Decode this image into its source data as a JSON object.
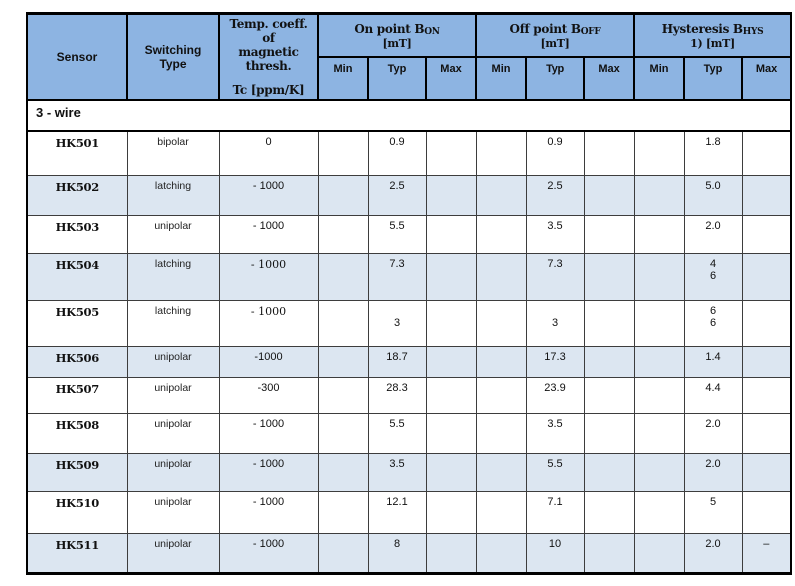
{
  "colors": {
    "header_bg": "#8db4e2",
    "row_alt_bg": "#dce6f1",
    "grid_line": "#3d3d3d",
    "frame_line": "#000000"
  },
  "header": {
    "sensor": "Sensor",
    "switching_type": "Switching\nType",
    "temp_coeff_title": "Temp. coeff. of\nmagnetic thresh.",
    "temp_coeff_unit": "Tc [ppm/K]",
    "on_point": {
      "label": "On point B",
      "sub": "ON",
      "unit": "[mT]"
    },
    "off_point": {
      "label": "Off point B",
      "sub": "OFF",
      "unit": "[mT]"
    },
    "hysteresis": {
      "label": "Hysteresis B",
      "sub": "HYS",
      "unit": "1) [mT]"
    },
    "min": "Min",
    "typ": "Typ",
    "max": "Max"
  },
  "section_label": "3 - wire",
  "rows": [
    {
      "sensor": "HK501",
      "switching_type": "bipolar",
      "tc": "0",
      "tc_serif": false,
      "on_min": "",
      "on_typ": "0.9",
      "on_max": "",
      "off_min": "",
      "off_typ": "0.9",
      "off_max": "",
      "hys_min": "",
      "hys_typ": "1.8",
      "hys_max": "",
      "shaded": false
    },
    {
      "sensor": "HK502",
      "switching_type": "latching",
      "tc": "- 1000",
      "tc_serif": false,
      "on_min": "",
      "on_typ": "2.5",
      "on_max": "",
      "off_min": "",
      "off_typ": "2.5",
      "off_max": "",
      "hys_min": "",
      "hys_typ": "5.0",
      "hys_max": "",
      "shaded": true
    },
    {
      "sensor": "HK503",
      "switching_type": "unipolar",
      "tc": "- 1000",
      "tc_serif": false,
      "on_min": "",
      "on_typ": "5.5",
      "on_max": "",
      "off_min": "",
      "off_typ": "3.5",
      "off_max": "",
      "hys_min": "",
      "hys_typ": "2.0",
      "hys_max": "",
      "shaded": false
    },
    {
      "sensor": "HK504",
      "switching_type": "latching",
      "tc": "- 1000",
      "tc_serif": true,
      "on_min": "",
      "on_typ": "7.3",
      "on_max": "",
      "off_min": "",
      "off_typ": "7.3",
      "off_max": "",
      "hys_min": "",
      "hys_typ": "4\n6",
      "hys_max": "",
      "shaded": true
    },
    {
      "sensor": "HK505",
      "switching_type": "latching",
      "tc": "- 1000",
      "tc_serif": true,
      "on_min": "",
      "on_typ": "\n3",
      "on_max": "",
      "off_min": "",
      "off_typ": "\n3",
      "off_max": "",
      "hys_min": "",
      "hys_typ": "6\n6",
      "hys_max": "",
      "shaded": false
    },
    {
      "sensor": "HK506",
      "switching_type": "unipolar",
      "tc": "-1000",
      "tc_serif": false,
      "on_min": "",
      "on_typ": "18.7",
      "on_max": "",
      "off_min": "",
      "off_typ": "17.3",
      "off_max": "",
      "hys_min": "",
      "hys_typ": "1.4",
      "hys_max": "",
      "shaded": true
    },
    {
      "sensor": "HK507",
      "switching_type": "unipolar",
      "tc": "-300",
      "tc_serif": false,
      "on_min": "",
      "on_typ": "28.3",
      "on_max": "",
      "off_min": "",
      "off_typ": "23.9",
      "off_max": "",
      "hys_min": "",
      "hys_typ": "4.4",
      "hys_max": "",
      "shaded": false
    },
    {
      "sensor": "HK508",
      "switching_type": "unipolar",
      "tc": "- 1000",
      "tc_serif": false,
      "on_min": "",
      "on_typ": "5.5",
      "on_max": "",
      "off_min": "",
      "off_typ": "3.5",
      "off_max": "",
      "hys_min": "",
      "hys_typ": "2.0",
      "hys_max": "",
      "shaded": false
    },
    {
      "sensor": "HK509",
      "switching_type": "unipolar",
      "tc": "- 1000",
      "tc_serif": false,
      "on_min": "",
      "on_typ": "3.5",
      "on_max": "",
      "off_min": "",
      "off_typ": "5.5",
      "off_max": "",
      "hys_min": "",
      "hys_typ": "2.0",
      "hys_max": "",
      "shaded": true
    },
    {
      "sensor": "HK510",
      "switching_type": "unipolar",
      "tc": "- 1000",
      "tc_serif": false,
      "on_min": "",
      "on_typ": "12.1",
      "on_max": "",
      "off_min": "",
      "off_typ": "7.1",
      "off_max": "",
      "hys_min": "",
      "hys_typ": "5",
      "hys_max": "",
      "shaded": false
    },
    {
      "sensor": "HK511",
      "switching_type": "unipolar",
      "tc": "- 1000",
      "tc_serif": false,
      "on_min": "",
      "on_typ": "8",
      "on_max": "",
      "off_min": "",
      "off_typ": "10",
      "off_max": "",
      "hys_min": "",
      "hys_typ": "2.0",
      "hys_max": "–",
      "shaded": true
    }
  ]
}
